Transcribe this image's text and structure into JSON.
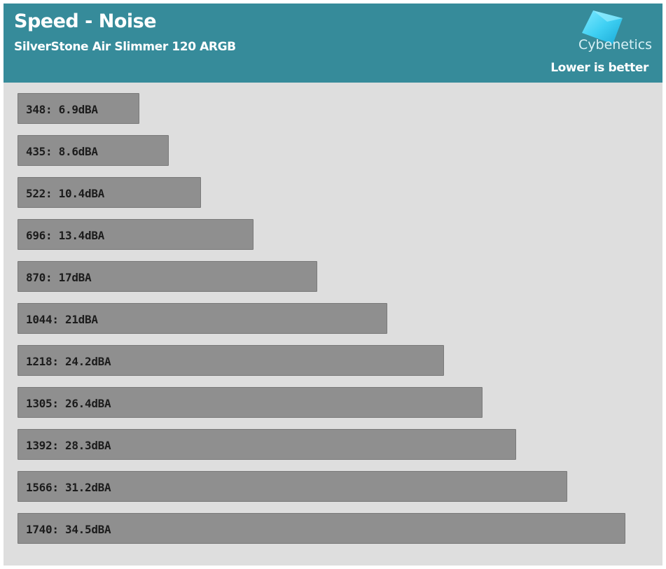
{
  "header": {
    "title": "Speed - Noise",
    "subtitle": "SilverStone Air Slimmer 120 ARGB",
    "logo_text": "Cybenetics",
    "note": "Lower is better"
  },
  "colors": {
    "header_bg": "#368b9a",
    "plot_bg": "#dedede",
    "bar_fill": "#8f8f8f"
  },
  "chart_data": {
    "type": "bar",
    "orientation": "horizontal",
    "title": "Speed - Noise",
    "subtitle": "SilverStone Air Slimmer 120 ARGB",
    "categories": [
      "348",
      "435",
      "522",
      "696",
      "870",
      "1044",
      "1218",
      "1305",
      "1392",
      "1566",
      "1740"
    ],
    "values": [
      6.9,
      8.6,
      10.4,
      13.4,
      17,
      21,
      24.2,
      26.4,
      28.3,
      31.2,
      34.5
    ],
    "unit": "dBA",
    "labels": [
      "348: 6.9dBA",
      "435: 8.6dBA",
      "522: 10.4dBA",
      "696: 13.4dBA",
      "870: 17dBA",
      "1044: 21dBA",
      "1218: 24.2dBA",
      "1305: 26.4dBA",
      "1392: 28.3dBA",
      "1566: 31.2dBA",
      "1740: 34.5dBA"
    ],
    "grid": false,
    "legend": "none"
  }
}
